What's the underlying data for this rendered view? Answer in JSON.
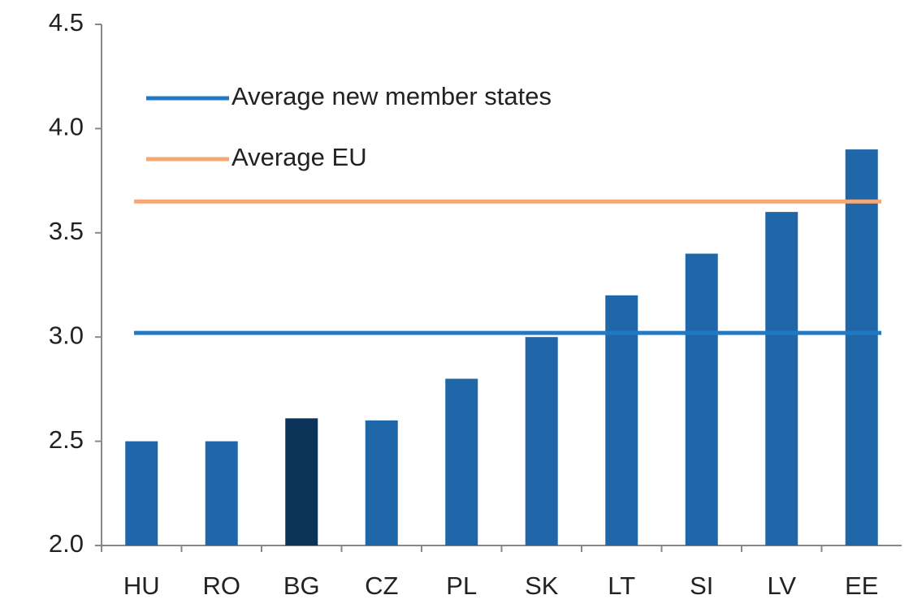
{
  "chart_data": {
    "type": "bar",
    "categories": [
      "HU",
      "RO",
      "BG",
      "CZ",
      "PL",
      "SK",
      "LT",
      "SI",
      "LV",
      "EE"
    ],
    "values": [
      2.5,
      2.5,
      2.61,
      2.6,
      2.8,
      3.0,
      3.2,
      3.4,
      3.6,
      3.9
    ],
    "colors": [
      "#1f67a8",
      "#1f67a8",
      "#0c3358",
      "#1f67a8",
      "#1f67a8",
      "#1f67a8",
      "#1f67a8",
      "#1f67a8",
      "#1f67a8",
      "#1f67a8"
    ],
    "ylim": [
      2,
      4.5
    ],
    "yticks": [
      {
        "value": 2,
        "label": "2.0"
      },
      2.5,
      {
        "value": 3,
        "label": "3.0"
      },
      3.5,
      {
        "value": 4,
        "label": "4.0"
      },
      4.5
    ],
    "reference_lines": [
      {
        "name": "Average new member states",
        "value": 3.02,
        "color": "#2378c3"
      },
      {
        "name": "Average EU",
        "value": 3.65,
        "color": "#f5a873"
      }
    ]
  }
}
